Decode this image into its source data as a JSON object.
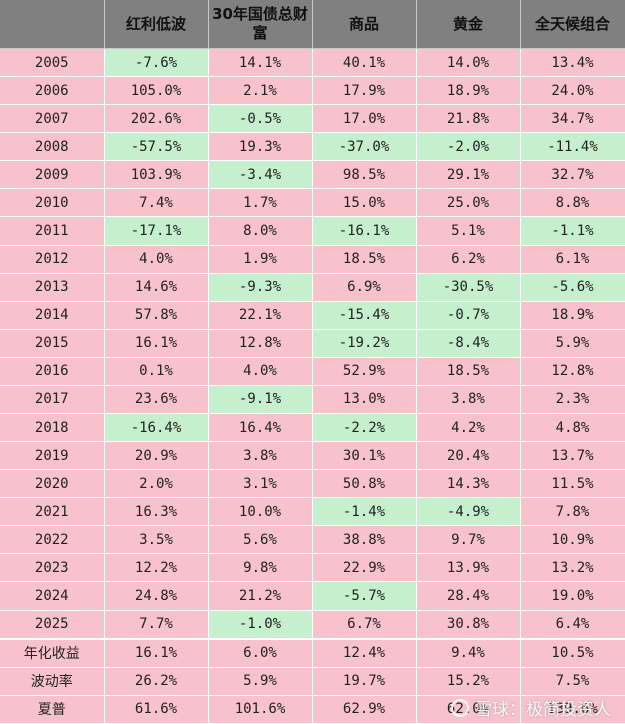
{
  "chart_data": {
    "type": "table",
    "columns": [
      "",
      "红利低波",
      "30年国债总财富",
      "商品",
      "黄金",
      "全天候组合"
    ],
    "rows": [
      {
        "label": "2005",
        "values": [
          "-7.6%",
          "14.1%",
          "40.1%",
          "14.0%",
          "13.4%"
        ]
      },
      {
        "label": "2006",
        "values": [
          "105.0%",
          "2.1%",
          "17.9%",
          "18.9%",
          "24.0%"
        ]
      },
      {
        "label": "2007",
        "values": [
          "202.6%",
          "-0.5%",
          "17.0%",
          "21.8%",
          "34.7%"
        ]
      },
      {
        "label": "2008",
        "values": [
          "-57.5%",
          "19.3%",
          "-37.0%",
          "-2.0%",
          "-11.4%"
        ]
      },
      {
        "label": "2009",
        "values": [
          "103.9%",
          "-3.4%",
          "98.5%",
          "29.1%",
          "32.7%"
        ]
      },
      {
        "label": "2010",
        "values": [
          "7.4%",
          "1.7%",
          "15.0%",
          "25.0%",
          "8.8%"
        ]
      },
      {
        "label": "2011",
        "values": [
          "-17.1%",
          "8.0%",
          "-16.1%",
          "5.1%",
          "-1.1%"
        ]
      },
      {
        "label": "2012",
        "values": [
          "4.0%",
          "1.9%",
          "18.5%",
          "6.2%",
          "6.1%"
        ]
      },
      {
        "label": "2013",
        "values": [
          "14.6%",
          "-9.3%",
          "6.9%",
          "-30.5%",
          "-5.6%"
        ]
      },
      {
        "label": "2014",
        "values": [
          "57.8%",
          "22.1%",
          "-15.4%",
          "-0.7%",
          "18.9%"
        ]
      },
      {
        "label": "2015",
        "values": [
          "16.1%",
          "12.8%",
          "-19.2%",
          "-8.4%",
          "5.9%"
        ]
      },
      {
        "label": "2016",
        "values": [
          "0.1%",
          "4.0%",
          "52.9%",
          "18.5%",
          "12.8%"
        ]
      },
      {
        "label": "2017",
        "values": [
          "23.6%",
          "-9.1%",
          "13.0%",
          "3.8%",
          "2.3%"
        ]
      },
      {
        "label": "2018",
        "values": [
          "-16.4%",
          "16.4%",
          "-2.2%",
          "4.2%",
          "4.8%"
        ]
      },
      {
        "label": "2019",
        "values": [
          "20.9%",
          "3.8%",
          "30.1%",
          "20.4%",
          "13.7%"
        ]
      },
      {
        "label": "2020",
        "values": [
          "2.0%",
          "3.1%",
          "50.8%",
          "14.3%",
          "11.5%"
        ]
      },
      {
        "label": "2021",
        "values": [
          "16.3%",
          "10.0%",
          "-1.4%",
          "-4.9%",
          "7.8%"
        ]
      },
      {
        "label": "2022",
        "values": [
          "3.5%",
          "5.6%",
          "38.8%",
          "9.7%",
          "10.9%"
        ]
      },
      {
        "label": "2023",
        "values": [
          "12.2%",
          "9.8%",
          "22.9%",
          "13.9%",
          "13.2%"
        ]
      },
      {
        "label": "2024",
        "values": [
          "24.8%",
          "21.2%",
          "-5.7%",
          "28.4%",
          "19.0%"
        ]
      },
      {
        "label": "2025",
        "values": [
          "7.7%",
          "-1.0%",
          "6.7%",
          "30.8%",
          "6.4%"
        ]
      }
    ],
    "summary": [
      {
        "label": "年化收益",
        "values": [
          "16.1%",
          "6.0%",
          "12.4%",
          "9.4%",
          "10.5%"
        ]
      },
      {
        "label": "波动率",
        "values": [
          "26.2%",
          "5.9%",
          "19.7%",
          "15.2%",
          "7.5%"
        ]
      },
      {
        "label": "夏普",
        "values": [
          "61.6%",
          "101.6%",
          "62.9%",
          "62.0%",
          "139.6%"
        ]
      }
    ],
    "colors": {
      "header_bg": "#808080",
      "positive_bg": "#f7c2cc",
      "negative_bg": "#c6efce"
    }
  },
  "watermark": {
    "text": "雪球：极简投资人",
    "icon": "snowball-logo-icon"
  }
}
